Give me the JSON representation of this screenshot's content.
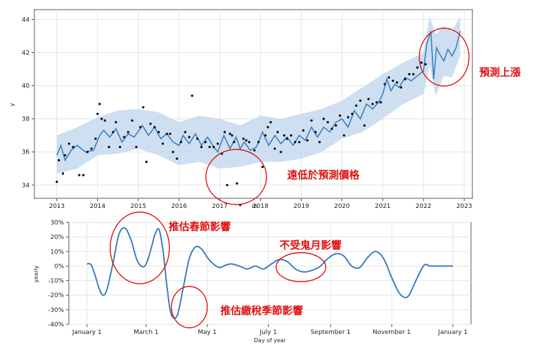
{
  "colors": {
    "line": "#3a7ebf",
    "band": "#c4d9ee",
    "points": "#111111",
    "annotation": "#e01010"
  },
  "chart_data": [
    {
      "type": "line",
      "xlabel": "ds",
      "ylabel": "y",
      "x_ticks": [
        "2013",
        "2014",
        "2015",
        "2016",
        "2017",
        "2018",
        "2019",
        "2020",
        "2021",
        "2022",
        "2023"
      ],
      "y_ticks": [
        "34",
        "36",
        "38",
        "40",
        "42",
        "44"
      ],
      "xlim": [
        2012.45,
        2023.2
      ],
      "ylim": [
        33.2,
        44.6
      ],
      "grid": true,
      "series": [
        {
          "role": "forecast",
          "x": [
            2013.0,
            2013.1,
            2013.2,
            2013.35,
            2013.5,
            2013.7,
            2013.9,
            2014.05,
            2014.15,
            2014.3,
            2014.45,
            2014.6,
            2014.75,
            2014.9,
            2015.1,
            2015.25,
            2015.4,
            2015.55,
            2015.7,
            2015.85,
            2016.0,
            2016.1,
            2016.25,
            2016.4,
            2016.55,
            2016.7,
            2016.85,
            2016.95,
            2017.1,
            2017.25,
            2017.4,
            2017.5,
            2017.6,
            2017.75,
            2017.9,
            2018.05,
            2018.2,
            2018.35,
            2018.5,
            2018.65,
            2018.8,
            2018.95,
            2019.1,
            2019.25,
            2019.4,
            2019.55,
            2019.7,
            2019.85,
            2020.0,
            2020.15,
            2020.3,
            2020.45,
            2020.6,
            2020.75,
            2020.9,
            2021.0,
            2021.1,
            2021.2,
            2021.3,
            2021.4,
            2021.55,
            2021.7,
            2021.85,
            2022.0,
            2022.08,
            2022.18,
            2022.25,
            2022.32,
            2022.4,
            2022.5,
            2022.6,
            2022.7,
            2022.8,
            2022.9
          ],
          "y": [
            35.8,
            36.4,
            35.5,
            36.1,
            36.4,
            36.0,
            36.1,
            37.0,
            37.3,
            36.9,
            37.4,
            36.6,
            37.1,
            36.9,
            37.6,
            37.0,
            37.5,
            36.8,
            37.1,
            36.6,
            36.4,
            37.0,
            36.5,
            37.1,
            36.4,
            36.9,
            36.3,
            36.0,
            37.0,
            36.2,
            36.9,
            36.2,
            36.6,
            36.1,
            36.3,
            37.2,
            36.4,
            37.0,
            36.5,
            36.9,
            36.4,
            37.0,
            36.7,
            37.5,
            36.9,
            37.5,
            37.2,
            37.8,
            38.0,
            37.5,
            38.5,
            38.0,
            38.9,
            38.6,
            39.0,
            39.5,
            40.4,
            39.7,
            40.1,
            39.9,
            40.5,
            40.3,
            40.6,
            40.9,
            42.5,
            43.3,
            40.4,
            42.3,
            41.9,
            41.5,
            42.2,
            41.8,
            42.3,
            43.3
          ]
        },
        {
          "role": "uncertainty_upper",
          "x": [
            2013.0,
            2013.5,
            2014.0,
            2014.5,
            2015.0,
            2015.5,
            2016.0,
            2016.5,
            2017.0,
            2017.5,
            2018.0,
            2018.5,
            2019.0,
            2019.5,
            2020.0,
            2020.5,
            2021.0,
            2021.5,
            2022.0,
            2022.15,
            2022.3,
            2022.5,
            2022.7,
            2022.9
          ],
          "y": [
            37.0,
            37.5,
            38.1,
            38.5,
            38.6,
            38.4,
            37.8,
            38.2,
            38.0,
            37.6,
            38.2,
            38.0,
            38.3,
            38.6,
            39.1,
            39.9,
            40.7,
            41.4,
            42.0,
            44.2,
            43.1,
            43.6,
            43.3,
            44.2
          ]
        },
        {
          "role": "uncertainty_lower",
          "x": [
            2013.0,
            2013.5,
            2014.0,
            2014.5,
            2015.0,
            2015.5,
            2016.0,
            2016.5,
            2017.0,
            2017.5,
            2018.0,
            2018.5,
            2019.0,
            2019.5,
            2020.0,
            2020.5,
            2021.0,
            2021.5,
            2022.0,
            2022.15,
            2022.3,
            2022.5,
            2022.7,
            2022.9
          ],
          "y": [
            34.7,
            35.0,
            35.8,
            35.9,
            36.2,
            35.8,
            35.2,
            35.4,
            35.0,
            35.1,
            35.4,
            35.4,
            35.6,
            36.0,
            36.8,
            37.2,
            38.0,
            38.9,
            39.5,
            41.2,
            39.4,
            40.6,
            40.5,
            41.8
          ]
        },
        {
          "role": "observed",
          "x": [
            2013.0,
            2013.05,
            2013.15,
            2013.2,
            2013.3,
            2013.4,
            2013.55,
            2013.65,
            2013.75,
            2013.85,
            2013.95,
            2014.0,
            2014.05,
            2014.1,
            2014.18,
            2014.28,
            2014.38,
            2014.45,
            2014.55,
            2014.65,
            2014.75,
            2014.85,
            2014.95,
            2015.05,
            2015.12,
            2015.2,
            2015.3,
            2015.4,
            2015.5,
            2015.6,
            2015.7,
            2015.78,
            2015.85,
            2015.95,
            2016.05,
            2016.15,
            2016.25,
            2016.32,
            2016.45,
            2016.55,
            2016.65,
            2016.75,
            2016.85,
            2016.95,
            2017.05,
            2017.12,
            2017.18,
            2017.25,
            2017.3,
            2017.35,
            2017.42,
            2017.5,
            2017.58,
            2017.65,
            2017.72,
            2017.85,
            2017.95,
            2018.05,
            2018.12,
            2018.18,
            2018.25,
            2018.35,
            2018.42,
            2018.5,
            2018.58,
            2018.65,
            2018.75,
            2018.85,
            2018.95,
            2019.05,
            2019.15,
            2019.25,
            2019.35,
            2019.45,
            2019.55,
            2019.65,
            2019.75,
            2019.85,
            2019.95,
            2020.05,
            2020.15,
            2020.25,
            2020.35,
            2020.45,
            2020.55,
            2020.65,
            2020.75,
            2020.85,
            2020.95,
            2021.05,
            2021.15,
            2021.25,
            2021.35,
            2021.45,
            2021.55,
            2021.65,
            2021.75,
            2021.85,
            2021.95,
            2022.05
          ],
          "y": [
            34.2,
            35.5,
            34.7,
            35.8,
            36.5,
            36.3,
            34.6,
            34.6,
            36.0,
            36.2,
            36.8,
            38.3,
            38.9,
            38.0,
            37.9,
            36.3,
            37.2,
            37.8,
            36.3,
            36.9,
            37.2,
            37.9,
            36.3,
            37.5,
            38.7,
            35.4,
            37.7,
            37.5,
            37.2,
            36.5,
            37.1,
            37.1,
            36.0,
            35.6,
            36.6,
            37.2,
            36.9,
            39.4,
            36.8,
            36.3,
            36.6,
            36.3,
            36.3,
            36.5,
            35.9,
            37.2,
            34.0,
            37.1,
            37.0,
            36.6,
            34.1,
            32.8,
            36.8,
            36.7,
            36.6,
            36.1,
            36.6,
            35.1,
            37.0,
            37.5,
            37.8,
            36.2,
            37.2,
            36.0,
            37.0,
            36.8,
            37.0,
            36.6,
            36.6,
            37.3,
            36.7,
            37.9,
            37.2,
            36.6,
            38.0,
            37.8,
            37.4,
            37.6,
            38.2,
            37.0,
            38.1,
            38.3,
            38.8,
            39.1,
            37.6,
            39.2,
            38.9,
            39.0,
            39.0,
            40.1,
            40.5,
            40.3,
            40.2,
            39.9,
            40.4,
            40.7,
            40.7,
            41.1,
            41.4,
            41.3
          ]
        }
      ]
    },
    {
      "type": "line",
      "xlabel": "Day of year",
      "ylabel": "yearly",
      "x_ticks": [
        "January 1",
        "March 1",
        "May 1",
        "July 1",
        "September 1",
        "November 1",
        "January 1"
      ],
      "x_tick_days": [
        0,
        59,
        120,
        181,
        243,
        304,
        365
      ],
      "y_ticks": [
        "30%",
        "20%",
        "10%",
        "0%",
        "-10%",
        "-20%",
        "-30%",
        "-40%"
      ],
      "ylim": [
        -40,
        30
      ],
      "xlim": [
        -18,
        383
      ],
      "grid": true,
      "series": [
        {
          "role": "yearly",
          "x": [
            0,
            4,
            8,
            12,
            16,
            20,
            26,
            32,
            38,
            44,
            50,
            56,
            60,
            64,
            68,
            72,
            76,
            80,
            84,
            90,
            96,
            102,
            108,
            114,
            120,
            126,
            132,
            138,
            144,
            152,
            160,
            168,
            176,
            184,
            192,
            200,
            208,
            216,
            224,
            232,
            240,
            248,
            256,
            264,
            272,
            280,
            288,
            296,
            304,
            312,
            320,
            328,
            336,
            342,
            348,
            354,
            360,
            365
          ],
          "x_comment": "",
          "y": [
            1.5,
            1.0,
            -6,
            -15,
            -20,
            -16,
            2,
            22,
            26,
            18,
            4,
            -0.5,
            3,
            12,
            22,
            25,
            10,
            -15,
            -33,
            -34,
            -15,
            5,
            13,
            12,
            6,
            1.5,
            -1,
            0.5,
            1.5,
            0,
            -2,
            0,
            -2,
            1.5,
            4.5,
            3,
            -2,
            -4,
            -3,
            -0.5,
            5,
            8.5,
            7,
            0,
            -1,
            6,
            10,
            5,
            -8,
            -19,
            -21,
            -10,
            0.5,
            0,
            0,
            0,
            0,
            0
          ]
        }
      ]
    }
  ],
  "annotations": {
    "rise": "預測上漲",
    "far_below": "遠低於預測價格",
    "spring": "推估春節影響",
    "ghost": "不受鬼月影響",
    "tax": "推估繳稅季節影響"
  }
}
